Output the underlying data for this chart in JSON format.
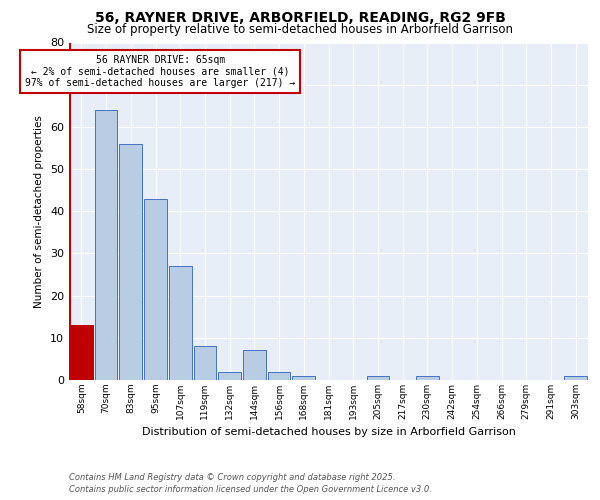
{
  "title1": "56, RAYNER DRIVE, ARBORFIELD, READING, RG2 9FB",
  "title2": "Size of property relative to semi-detached houses in Arborfield Garrison",
  "xlabel": "Distribution of semi-detached houses by size in Arborfield Garrison",
  "ylabel": "Number of semi-detached properties",
  "bins": [
    "58sqm",
    "70sqm",
    "83sqm",
    "95sqm",
    "107sqm",
    "119sqm",
    "132sqm",
    "144sqm",
    "156sqm",
    "168sqm",
    "181sqm",
    "193sqm",
    "205sqm",
    "217sqm",
    "230sqm",
    "242sqm",
    "254sqm",
    "266sqm",
    "279sqm",
    "291sqm",
    "303sqm"
  ],
  "values": [
    13,
    64,
    56,
    43,
    27,
    8,
    2,
    7,
    2,
    1,
    0,
    0,
    1,
    0,
    1,
    0,
    0,
    0,
    0,
    0,
    1
  ],
  "bar_color": "#b8cce4",
  "bar_edge_color": "#4472c4",
  "highlight_bar_index": 0,
  "highlight_color": "#c00000",
  "annotation_title": "56 RAYNER DRIVE: 65sqm",
  "annotation_line1": "← 2% of semi-detached houses are smaller (4)",
  "annotation_line2": "97% of semi-detached houses are larger (217) →",
  "annotation_box_color": "#c00000",
  "ylim": [
    0,
    80
  ],
  "yticks": [
    0,
    10,
    20,
    30,
    40,
    50,
    60,
    70,
    80
  ],
  "background_color": "#e8eef7",
  "footer1": "Contains HM Land Registry data © Crown copyright and database right 2025.",
  "footer2": "Contains public sector information licensed under the Open Government Licence v3.0."
}
